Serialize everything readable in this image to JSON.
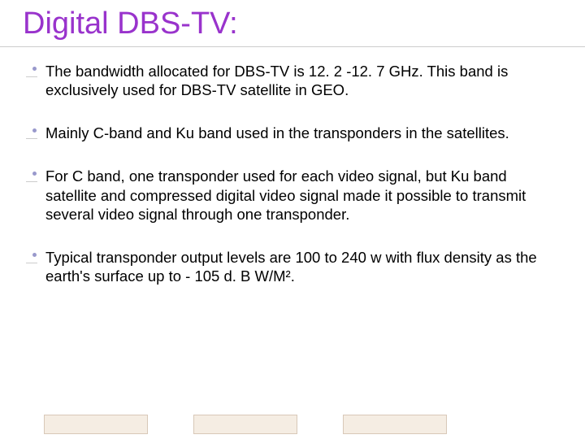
{
  "slide": {
    "title": "Digital DBS-TV:",
    "title_color": "#9933cc",
    "title_fontsize": 38,
    "underline_color": "#cccccc",
    "background_color": "#ffffff",
    "bullets": [
      {
        "text": "The bandwidth allocated for DBS-TV is 12. 2 -12. 7 GHz. This band is exclusively used for DBS-TV satellite in GEO."
      },
      {
        "text": "Mainly C-band and Ku band used in the transponders in the satellites."
      },
      {
        "text": "For C band, one transponder used for each video signal, but Ku band satellite and compressed digital video signal made it possible to transmit several video signal through one transponder."
      },
      {
        "text": "Typical transponder output levels are 100 to 240 w with flux density as the earth's surface up to - 105 d. B W/M²."
      }
    ],
    "bullet_color": "#9999cc",
    "bullet_text_color": "#000000",
    "bullet_fontsize": 18.5,
    "footer": {
      "box_border_color": "#d8c8b8",
      "box_fill_color": "#f5ede3",
      "layout": [
        {
          "type": "spacer",
          "width": 54
        },
        {
          "type": "box",
          "width": 128
        },
        {
          "type": "spacer",
          "width": 56
        },
        {
          "type": "box",
          "width": 128
        },
        {
          "type": "spacer",
          "width": 56
        },
        {
          "type": "box",
          "width": 128
        }
      ]
    }
  }
}
